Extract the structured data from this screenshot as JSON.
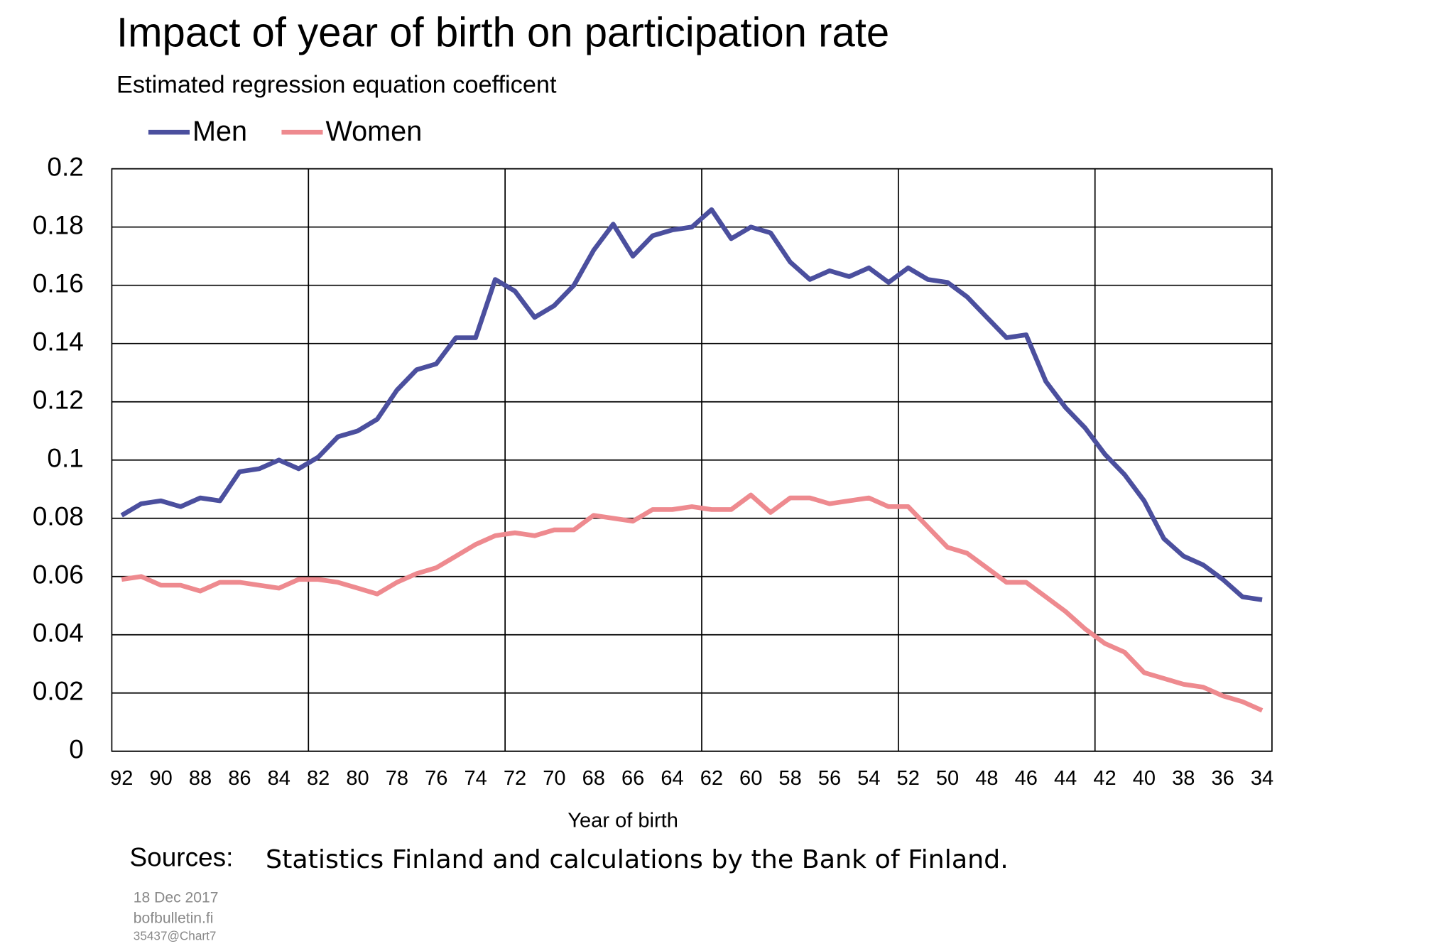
{
  "chart_data": {
    "type": "line",
    "title": "Impact of year of birth on participation rate",
    "subtitle": "Estimated regression equation coefficent",
    "x_label": "Year of birth",
    "source_label": "Sources:",
    "source_text": "Statistics Finland and calculations by the Bank of Finland.",
    "footer": [
      "18 Dec 2017",
      "bofbulletin.fi",
      "35437@Chart7"
    ],
    "categories": [
      "92",
      null,
      "90",
      null,
      "88",
      null,
      "86",
      null,
      "84",
      null,
      "82",
      null,
      "80",
      null,
      "78",
      null,
      "76",
      null,
      "74",
      null,
      "72",
      null,
      "70",
      null,
      "68",
      null,
      "66",
      null,
      "64",
      null,
      "62",
      null,
      "60",
      null,
      "58",
      null,
      "56",
      null,
      "54",
      null,
      "52",
      null,
      "50",
      null,
      "48",
      null,
      "46",
      null,
      "44",
      null,
      "42",
      null,
      "40",
      null,
      "38",
      null,
      "36",
      null,
      "34"
    ],
    "series": [
      {
        "name": "Men",
        "color": "#4b4f9e",
        "values": [
          0.081,
          0.085,
          0.086,
          0.084,
          0.087,
          0.086,
          0.096,
          0.097,
          0.1,
          0.097,
          0.101,
          0.108,
          0.11,
          0.114,
          0.124,
          0.131,
          0.133,
          0.142,
          0.142,
          0.162,
          0.158,
          0.149,
          0.153,
          0.16,
          0.172,
          0.181,
          0.17,
          0.177,
          0.179,
          0.18,
          0.186,
          0.176,
          0.18,
          0.178,
          0.168,
          0.162,
          0.165,
          0.163,
          0.166,
          0.161,
          0.166,
          0.162,
          0.161,
          0.156,
          0.149,
          0.142,
          0.143,
          0.127,
          0.118,
          0.111,
          0.102,
          0.095,
          0.086,
          0.073,
          0.067,
          0.064,
          0.059,
          0.053,
          0.052
        ]
      },
      {
        "name": "Women",
        "color": "#ee8a8f",
        "values": [
          0.059,
          0.06,
          0.057,
          0.057,
          0.055,
          0.058,
          0.058,
          0.057,
          0.056,
          0.059,
          0.059,
          0.058,
          0.056,
          0.054,
          0.058,
          0.061,
          0.063,
          0.067,
          0.071,
          0.074,
          0.075,
          0.074,
          0.076,
          0.076,
          0.081,
          0.08,
          0.079,
          0.083,
          0.083,
          0.084,
          0.083,
          0.083,
          0.088,
          0.082,
          0.087,
          0.087,
          0.085,
          0.086,
          0.087,
          0.084,
          0.084,
          0.077,
          0.07,
          0.068,
          0.063,
          0.058,
          0.058,
          0.053,
          0.048,
          0.042,
          0.037,
          0.034,
          0.027,
          0.025,
          0.023,
          0.022,
          0.019,
          0.017,
          0.014
        ]
      }
    ],
    "ylim": [
      0,
      0.2
    ],
    "yticks": [
      0,
      0.02,
      0.04,
      0.06,
      0.08,
      0.1,
      0.12,
      0.14,
      0.16,
      0.18,
      0.2
    ],
    "grid": true,
    "legend": "top-left"
  }
}
